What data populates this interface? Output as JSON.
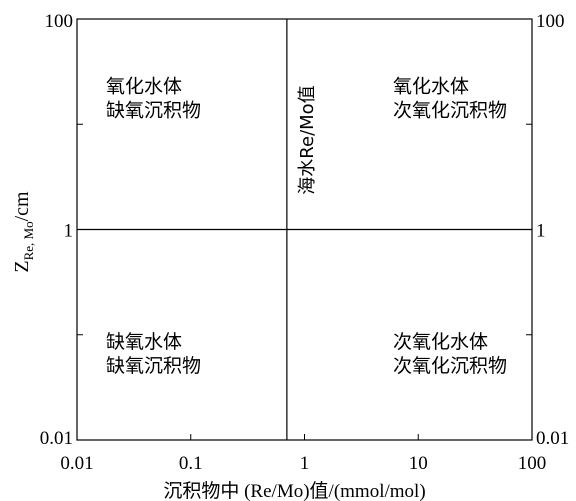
{
  "chart_data": {
    "type": "diagram",
    "x_axis": {
      "label_prefix": "沉积物中",
      "label_suffix": " (Re/Mo)值/(mmol/mol)",
      "scale": "log",
      "range": [
        0.01,
        100
      ],
      "ticks": [
        {
          "value": 0.01,
          "label": "0.01"
        },
        {
          "value": 0.1,
          "label": "0.1"
        },
        {
          "value": 1,
          "label": "1"
        },
        {
          "value": 10,
          "label": "10"
        },
        {
          "value": 100,
          "label": "100"
        }
      ]
    },
    "y_axis": {
      "label_main": "Z",
      "label_sub": "Re, Mo",
      "label_unit": "/cm",
      "scale": "log",
      "range": [
        0.01,
        100
      ],
      "ticks": [
        {
          "value": 0.01,
          "label": "0.01"
        },
        {
          "value": 1,
          "label": "1"
        },
        {
          "value": 100,
          "label": "100"
        }
      ]
    },
    "divider_vertical": {
      "x": 0.7,
      "label": "海水Re/Mo值"
    },
    "divider_horizontal": {
      "y": 1
    },
    "regions": [
      {
        "lines": [
          "氧化水体",
          "缺氧沉积物"
        ],
        "x": 0.018,
        "y": 20
      },
      {
        "lines": [
          "氧化水体",
          "次氧化沉积物"
        ],
        "x": 6,
        "y": 20
      },
      {
        "lines": [
          "缺氧水体",
          "缺氧沉积物"
        ],
        "x": 0.018,
        "y": 0.075
      },
      {
        "lines": [
          "次氧化水体",
          "次氧化沉积物"
        ],
        "x": 6,
        "y": 0.075
      }
    ]
  }
}
